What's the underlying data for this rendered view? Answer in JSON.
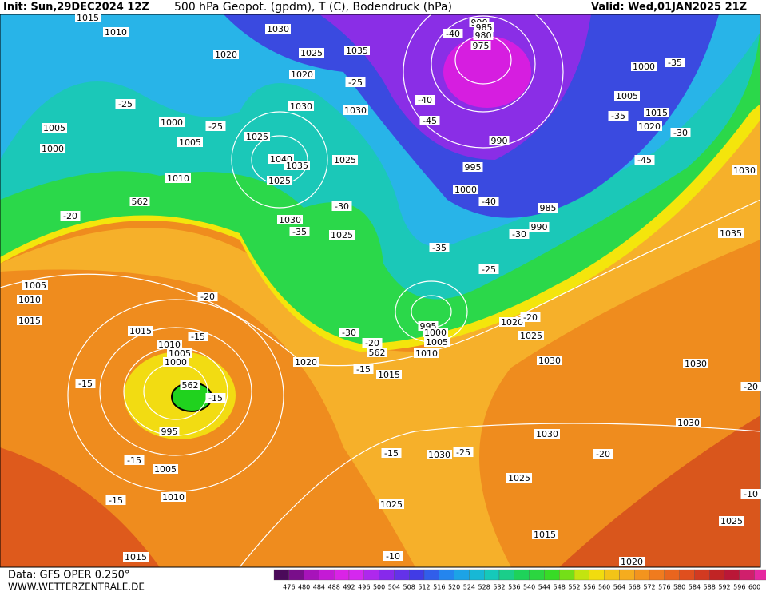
{
  "header": {
    "init": "Init: Sun,29DEC2024 12Z",
    "title": "500 hPa Geopot. (gpdm), T (C), Bodendruck (hPa)",
    "valid": "Valid: Wed,01JAN2025 21Z"
  },
  "footer": {
    "data": "Data: GFS OPER 0.250°",
    "site": "WWW.WETTERZENTRALE.DE"
  },
  "colorbar": {
    "labels": [
      "476",
      "480",
      "484",
      "488",
      "492",
      "496",
      "500",
      "504",
      "508",
      "512",
      "516",
      "520",
      "524",
      "528",
      "532",
      "536",
      "540",
      "544",
      "548",
      "552",
      "556",
      "560",
      "564",
      "568",
      "572",
      "576",
      "580",
      "584",
      "588",
      "592",
      "596",
      "600"
    ]
  },
  "map_labels": [
    "1015",
    "1010",
    "1020",
    "1030",
    "1025",
    "1035",
    "1020",
    "-25",
    "1030",
    "1030",
    "-25",
    "1000",
    "-25",
    "1005",
    "1005",
    "1025",
    "1000",
    "1040",
    "1035",
    "1025",
    "1025",
    "1010",
    "562",
    "-20",
    "1030",
    "-35",
    "1025",
    "-30",
    "990",
    "985",
    "980",
    "975",
    "-40",
    "1000",
    "-35",
    "1005",
    "-40",
    "-45",
    "990",
    "995",
    "1000",
    "-40",
    "985",
    "990",
    "-30",
    "-35",
    "-25",
    "1015",
    "-35",
    "1020",
    "-30",
    "-45",
    "1030",
    "1035",
    "1005",
    "1010",
    "1015",
    "-20",
    "1015",
    "-15",
    "1010",
    "1005",
    "1000",
    "-30",
    "-20",
    "562",
    "995",
    "1000",
    "1005",
    "1010",
    "1020",
    "-20",
    "1025",
    "1020",
    "-15",
    "1015",
    "1030",
    "1030",
    "-15",
    "562",
    "-15",
    "995",
    "-20",
    "1030",
    "1030",
    "-15",
    "1030",
    "-25",
    "-20",
    "-15",
    "1005",
    "1025",
    "-15",
    "1010",
    "1025",
    "-10",
    "1025",
    "1015",
    "1015",
    "-10",
    "1020"
  ]
}
